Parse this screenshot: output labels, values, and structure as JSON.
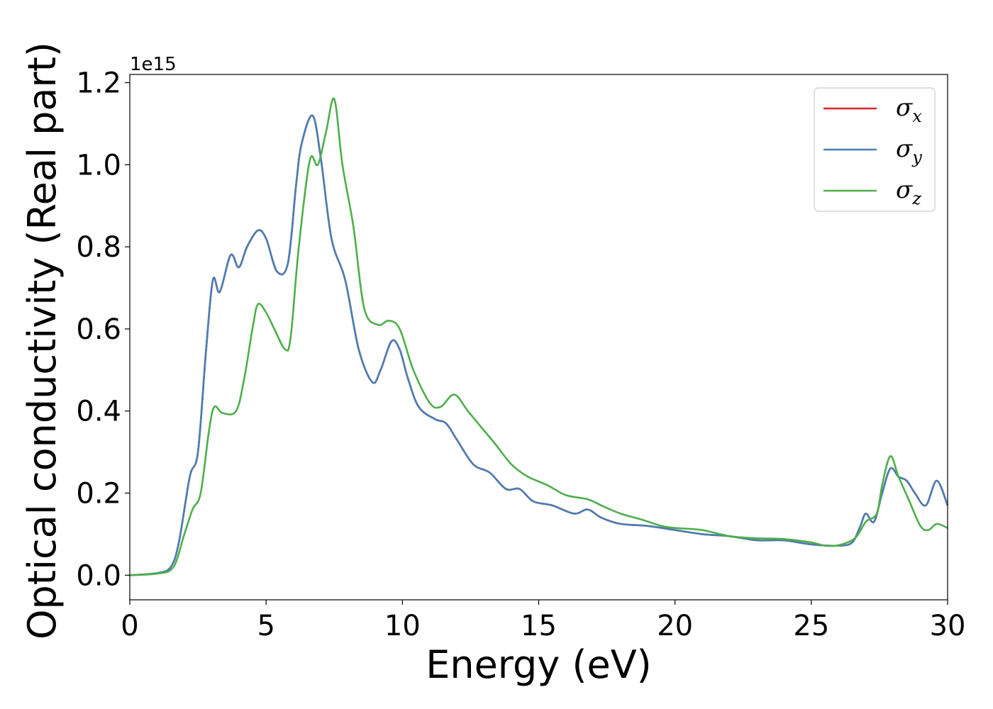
{
  "chart_data": {
    "type": "line",
    "xlabel": "Energy (eV)",
    "ylabel": "Optical conductivity (Real part)",
    "y_offset_label": "1e15",
    "xlim": [
      0,
      30
    ],
    "ylim": [
      -0.06,
      1.22
    ],
    "x_ticks": [
      0,
      5,
      10,
      15,
      20,
      25,
      30
    ],
    "y_ticks": [
      0.0,
      0.2,
      0.4,
      0.6,
      0.8,
      1.0,
      1.2
    ],
    "y_tick_labels": [
      "0.0",
      "0.2",
      "0.4",
      "0.6",
      "0.8",
      "1.0",
      "1.2"
    ],
    "grid": false,
    "legend_position": "top-right",
    "series": [
      {
        "name": "σx",
        "symbol": "σ",
        "subscript": "x",
        "color": "#d62728",
        "points": [
          [
            0,
            0
          ],
          [
            1,
            0.005
          ],
          [
            1.5,
            0.02
          ],
          [
            1.8,
            0.08
          ],
          [
            2.2,
            0.24
          ],
          [
            2.5,
            0.3
          ],
          [
            2.8,
            0.55
          ],
          [
            3.05,
            0.72
          ],
          [
            3.3,
            0.69
          ],
          [
            3.7,
            0.78
          ],
          [
            4.0,
            0.75
          ],
          [
            4.3,
            0.8
          ],
          [
            4.7,
            0.84
          ],
          [
            5.0,
            0.82
          ],
          [
            5.4,
            0.74
          ],
          [
            5.8,
            0.76
          ],
          [
            6.1,
            0.95
          ],
          [
            6.3,
            1.05
          ],
          [
            6.7,
            1.12
          ],
          [
            7.0,
            1.02
          ],
          [
            7.4,
            0.82
          ],
          [
            7.9,
            0.72
          ],
          [
            8.4,
            0.55
          ],
          [
            8.9,
            0.47
          ],
          [
            9.2,
            0.5
          ],
          [
            9.6,
            0.57
          ],
          [
            9.9,
            0.55
          ],
          [
            10.2,
            0.48
          ],
          [
            10.6,
            0.41
          ],
          [
            11.2,
            0.38
          ],
          [
            11.6,
            0.37
          ],
          [
            12.0,
            0.33
          ],
          [
            12.6,
            0.27
          ],
          [
            13.2,
            0.25
          ],
          [
            13.8,
            0.21
          ],
          [
            14.3,
            0.21
          ],
          [
            14.8,
            0.18
          ],
          [
            15.5,
            0.17
          ],
          [
            16.3,
            0.15
          ],
          [
            16.8,
            0.16
          ],
          [
            17.3,
            0.14
          ],
          [
            18.0,
            0.125
          ],
          [
            19.0,
            0.12
          ],
          [
            20.0,
            0.11
          ],
          [
            21.0,
            0.1
          ],
          [
            22.0,
            0.095
          ],
          [
            23.0,
            0.085
          ],
          [
            24.0,
            0.085
          ],
          [
            25.0,
            0.075
          ],
          [
            26.0,
            0.072
          ],
          [
            26.5,
            0.08
          ],
          [
            26.8,
            0.12
          ],
          [
            27.0,
            0.15
          ],
          [
            27.3,
            0.13
          ],
          [
            27.6,
            0.2
          ],
          [
            27.9,
            0.26
          ],
          [
            28.2,
            0.24
          ],
          [
            28.5,
            0.23
          ],
          [
            28.8,
            0.2
          ],
          [
            29.2,
            0.17
          ],
          [
            29.6,
            0.23
          ],
          [
            30,
            0.17
          ]
        ]
      },
      {
        "name": "σy",
        "symbol": "σ",
        "subscript": "y",
        "color": "#4a7eb3",
        "points": [
          [
            0,
            0
          ],
          [
            1,
            0.005
          ],
          [
            1.5,
            0.02
          ],
          [
            1.8,
            0.08
          ],
          [
            2.2,
            0.24
          ],
          [
            2.5,
            0.3
          ],
          [
            2.8,
            0.55
          ],
          [
            3.05,
            0.72
          ],
          [
            3.3,
            0.69
          ],
          [
            3.7,
            0.78
          ],
          [
            4.0,
            0.75
          ],
          [
            4.3,
            0.8
          ],
          [
            4.7,
            0.84
          ],
          [
            5.0,
            0.82
          ],
          [
            5.4,
            0.74
          ],
          [
            5.8,
            0.76
          ],
          [
            6.1,
            0.95
          ],
          [
            6.3,
            1.05
          ],
          [
            6.7,
            1.12
          ],
          [
            7.0,
            1.02
          ],
          [
            7.4,
            0.82
          ],
          [
            7.9,
            0.72
          ],
          [
            8.4,
            0.55
          ],
          [
            8.9,
            0.47
          ],
          [
            9.2,
            0.5
          ],
          [
            9.6,
            0.57
          ],
          [
            9.9,
            0.55
          ],
          [
            10.2,
            0.48
          ],
          [
            10.6,
            0.41
          ],
          [
            11.2,
            0.38
          ],
          [
            11.6,
            0.37
          ],
          [
            12.0,
            0.33
          ],
          [
            12.6,
            0.27
          ],
          [
            13.2,
            0.25
          ],
          [
            13.8,
            0.21
          ],
          [
            14.3,
            0.21
          ],
          [
            14.8,
            0.18
          ],
          [
            15.5,
            0.17
          ],
          [
            16.3,
            0.15
          ],
          [
            16.8,
            0.16
          ],
          [
            17.3,
            0.14
          ],
          [
            18.0,
            0.125
          ],
          [
            19.0,
            0.12
          ],
          [
            20.0,
            0.11
          ],
          [
            21.0,
            0.1
          ],
          [
            22.0,
            0.095
          ],
          [
            23.0,
            0.085
          ],
          [
            24.0,
            0.085
          ],
          [
            25.0,
            0.075
          ],
          [
            26.0,
            0.072
          ],
          [
            26.5,
            0.08
          ],
          [
            26.8,
            0.12
          ],
          [
            27.0,
            0.15
          ],
          [
            27.3,
            0.13
          ],
          [
            27.6,
            0.2
          ],
          [
            27.9,
            0.26
          ],
          [
            28.2,
            0.24
          ],
          [
            28.5,
            0.23
          ],
          [
            28.8,
            0.2
          ],
          [
            29.2,
            0.17
          ],
          [
            29.6,
            0.23
          ],
          [
            30,
            0.17
          ]
        ]
      },
      {
        "name": "σz",
        "symbol": "σ",
        "subscript": "z",
        "color": "#4daf4a",
        "points": [
          [
            0,
            0
          ],
          [
            1,
            0.004
          ],
          [
            1.6,
            0.02
          ],
          [
            2.0,
            0.1
          ],
          [
            2.3,
            0.16
          ],
          [
            2.6,
            0.2
          ],
          [
            2.9,
            0.35
          ],
          [
            3.1,
            0.41
          ],
          [
            3.4,
            0.395
          ],
          [
            3.9,
            0.4
          ],
          [
            4.2,
            0.48
          ],
          [
            4.5,
            0.6
          ],
          [
            4.7,
            0.66
          ],
          [
            5.0,
            0.64
          ],
          [
            5.3,
            0.6
          ],
          [
            5.7,
            0.55
          ],
          [
            5.9,
            0.58
          ],
          [
            6.2,
            0.8
          ],
          [
            6.6,
            1.01
          ],
          [
            6.9,
            1.0
          ],
          [
            7.2,
            1.08
          ],
          [
            7.5,
            1.16
          ],
          [
            7.8,
            1.0
          ],
          [
            8.2,
            0.85
          ],
          [
            8.6,
            0.65
          ],
          [
            9.1,
            0.61
          ],
          [
            9.5,
            0.62
          ],
          [
            9.9,
            0.6
          ],
          [
            10.4,
            0.5
          ],
          [
            11.0,
            0.42
          ],
          [
            11.4,
            0.41
          ],
          [
            11.9,
            0.44
          ],
          [
            12.4,
            0.4
          ],
          [
            12.9,
            0.36
          ],
          [
            13.4,
            0.32
          ],
          [
            14.0,
            0.27
          ],
          [
            14.6,
            0.24
          ],
          [
            15.3,
            0.22
          ],
          [
            16.0,
            0.195
          ],
          [
            16.8,
            0.185
          ],
          [
            17.3,
            0.17
          ],
          [
            18.0,
            0.15
          ],
          [
            18.8,
            0.135
          ],
          [
            19.5,
            0.12
          ],
          [
            20.0,
            0.115
          ],
          [
            21.0,
            0.11
          ],
          [
            22.0,
            0.095
          ],
          [
            23.0,
            0.09
          ],
          [
            24.0,
            0.088
          ],
          [
            25.0,
            0.08
          ],
          [
            25.5,
            0.072
          ],
          [
            26.0,
            0.073
          ],
          [
            26.6,
            0.09
          ],
          [
            27.0,
            0.13
          ],
          [
            27.4,
            0.15
          ],
          [
            27.6,
            0.22
          ],
          [
            27.9,
            0.29
          ],
          [
            28.2,
            0.24
          ],
          [
            28.6,
            0.18
          ],
          [
            29.0,
            0.12
          ],
          [
            29.3,
            0.11
          ],
          [
            29.6,
            0.125
          ],
          [
            30,
            0.115
          ]
        ]
      }
    ]
  }
}
